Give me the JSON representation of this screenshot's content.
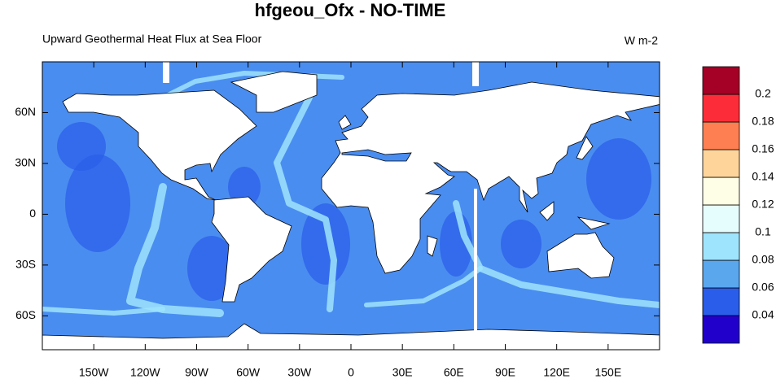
{
  "title": "hfgeou_Ofx - NO-TIME",
  "subtitle": "Upward Geothermal Heat Flux at Sea Floor",
  "units": "W m-2",
  "map": {
    "xlim": [
      -180,
      180
    ],
    "ylim": [
      -80,
      90
    ],
    "xticks": [
      {
        "value": -150,
        "label": "150W"
      },
      {
        "value": -120,
        "label": "120W"
      },
      {
        "value": -90,
        "label": "90W"
      },
      {
        "value": -60,
        "label": "60W"
      },
      {
        "value": -30,
        "label": "30W"
      },
      0,
      {
        "value": 30,
        "label": "30E"
      },
      {
        "value": 60,
        "label": "60E"
      },
      {
        "value": 90,
        "label": "90E"
      },
      {
        "value": 120,
        "label": "120E"
      },
      {
        "value": 150,
        "label": "150E"
      }
    ],
    "yticks": [
      {
        "value": -60,
        "label": "60S"
      },
      {
        "value": -30,
        "label": "30S"
      },
      0,
      {
        "value": 30,
        "label": "30N"
      },
      {
        "value": 60,
        "label": "60N"
      }
    ]
  },
  "colorbar": {
    "levels": [
      0.04,
      0.06,
      0.08,
      0.1,
      0.12,
      0.14,
      0.16,
      0.18,
      0.2
    ],
    "colors": [
      "#2200cc",
      "#2a5de9",
      "#5aa7ee",
      "#9fe4fd",
      "#e6fdfe",
      "#fefde6",
      "#fed49a",
      "#fe7f52",
      "#fc2d38",
      "#a50026"
    ]
  }
}
